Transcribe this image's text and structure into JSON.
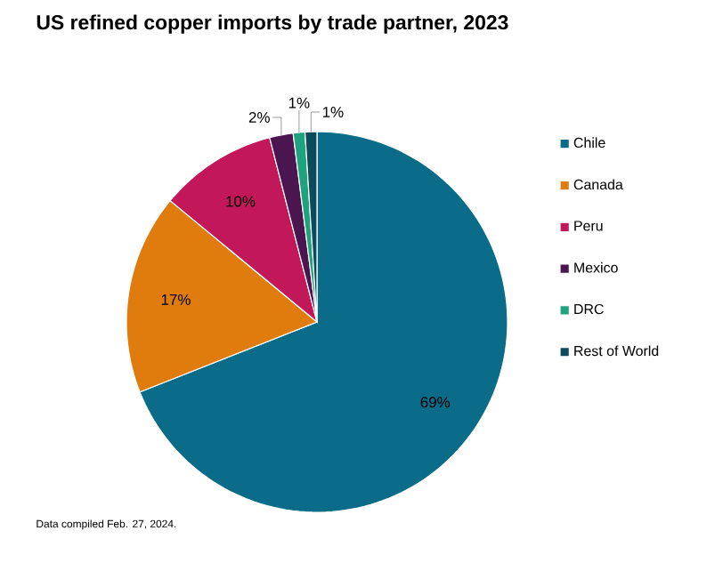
{
  "chart_data": {
    "type": "pie",
    "title": "US refined copper imports by trade partner, 2023",
    "categories": [
      "Chile",
      "Canada",
      "Peru",
      "Mexico",
      "DRC",
      "Rest of World"
    ],
    "values": [
      69,
      17,
      10,
      2,
      1,
      1
    ],
    "colors": [
      "#0b6c8a",
      "#e07c0e",
      "#c2185a",
      "#4b1650",
      "#1ea37e",
      "#0d4a5a"
    ],
    "value_labels": [
      "69%",
      "17%",
      "10%",
      "2%",
      "1%",
      "1%"
    ],
    "legend": "right",
    "annotations": [
      "Data compiled Feb. 27, 2024."
    ]
  }
}
